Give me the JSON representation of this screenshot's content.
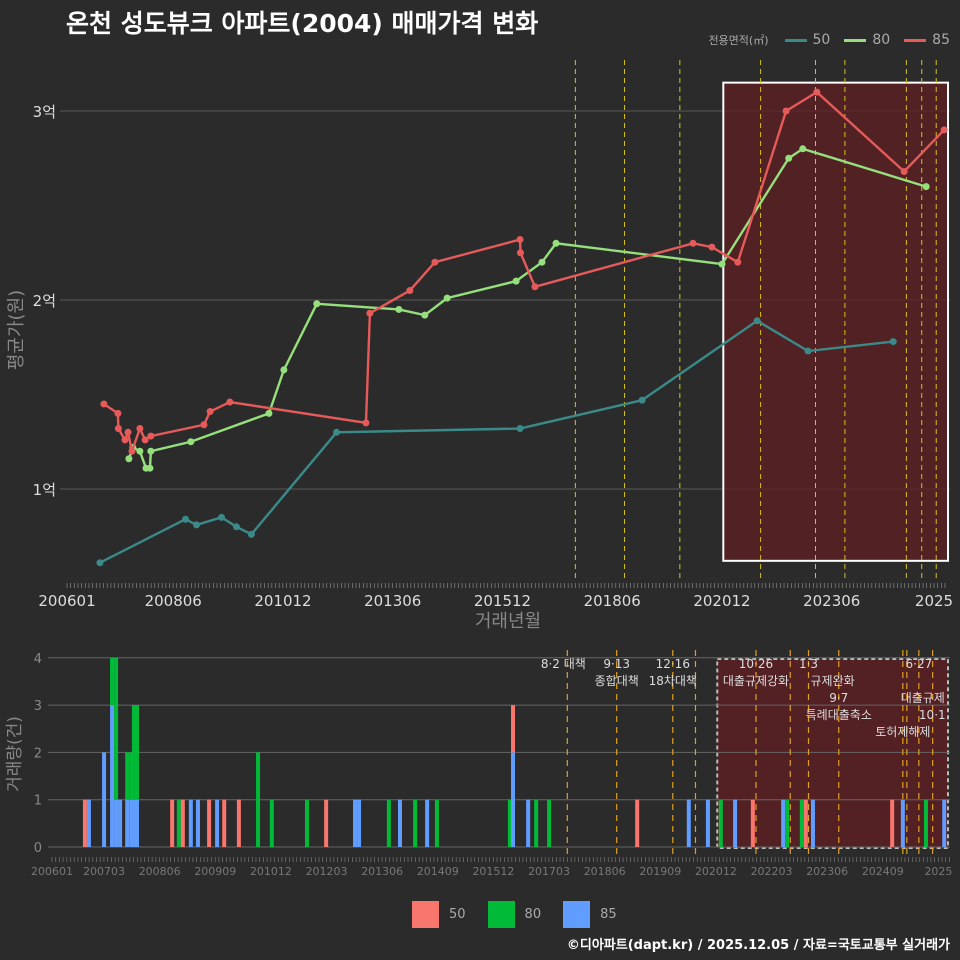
{
  "title": "온천 성도뷰크 아파트(2004) 매매가격 변화",
  "footer": "©디아파트(dapt.kr) / 2025.12.05 / 자료=국토교통부 실거래가",
  "legend_top": {
    "title": "전용면적(㎡)",
    "items": [
      {
        "label": "50",
        "color": "#3b8a8a"
      },
      {
        "label": "80",
        "color": "#95e07c"
      },
      {
        "label": "85",
        "color": "#e65a5a"
      }
    ]
  },
  "legend_bottom": {
    "items": [
      {
        "label": "50",
        "color": "#f8766d"
      },
      {
        "label": "80",
        "color": "#00ba38"
      },
      {
        "label": "85",
        "color": "#619cff"
      }
    ]
  },
  "chart_data": [
    {
      "type": "line",
      "title": "온천 성도뷰크 아파트(2004) 매매가격 변화",
      "xlabel": "거래년월",
      "ylabel": "평균가(원)",
      "xlim": [
        2006.0,
        2026.0
      ],
      "ylim": [
        0.55,
        3.2
      ],
      "x_ticks": [
        {
          "v": 2006.0,
          "l": "200601"
        },
        {
          "v": 2008.42,
          "l": "200806"
        },
        {
          "v": 2010.92,
          "l": "201012"
        },
        {
          "v": 2013.42,
          "l": "201306"
        },
        {
          "v": 2015.92,
          "l": "201512"
        },
        {
          "v": 2018.42,
          "l": "201806"
        },
        {
          "v": 2020.92,
          "l": "202012"
        },
        {
          "v": 2023.42,
          "l": "202306"
        },
        {
          "v": 2025.75,
          "l": "2025"
        }
      ],
      "y_ticks": [
        {
          "v": 1,
          "l": "1억"
        },
        {
          "v": 2,
          "l": "2억"
        },
        {
          "v": 3,
          "l": "3억"
        }
      ],
      "highlight": {
        "x": [
          2020.95,
          2026.0
        ],
        "y": [
          0.62,
          3.15
        ]
      },
      "event_lines": [
        2017.58,
        2018.7,
        2019.96,
        2021.8,
        2023.05,
        2023.72,
        2025.12,
        2025.47,
        2025.8
      ],
      "series": [
        {
          "name": "50",
          "color": "#3b8a8a",
          "points": [
            [
              2006.75,
              0.61
            ],
            [
              2008.7,
              0.84
            ],
            [
              2008.95,
              0.81
            ],
            [
              2009.52,
              0.85
            ],
            [
              2009.86,
              0.8
            ],
            [
              2010.2,
              0.76
            ],
            [
              2012.14,
              1.3
            ],
            [
              2016.32,
              1.32
            ],
            [
              2019.1,
              1.47
            ],
            [
              2021.72,
              1.89
            ],
            [
              2022.88,
              1.73
            ],
            [
              2024.82,
              1.78
            ]
          ]
        },
        {
          "name": "80",
          "color": "#95e07c",
          "points": [
            [
              2007.41,
              1.16
            ],
            [
              2007.5,
              1.22
            ],
            [
              2007.66,
              1.2
            ],
            [
              2007.8,
              1.11
            ],
            [
              2007.89,
              1.11
            ],
            [
              2007.91,
              1.2
            ],
            [
              2008.82,
              1.25
            ],
            [
              2010.6,
              1.4
            ],
            [
              2010.94,
              1.63
            ],
            [
              2011.69,
              1.98
            ],
            [
              2013.56,
              1.95
            ],
            [
              2014.15,
              1.92
            ],
            [
              2014.66,
              2.01
            ],
            [
              2016.23,
              2.1
            ],
            [
              2016.82,
              2.2
            ],
            [
              2017.14,
              2.3
            ],
            [
              2020.92,
              2.19
            ],
            [
              2022.44,
              2.75
            ],
            [
              2022.76,
              2.8
            ],
            [
              2025.57,
              2.6
            ]
          ]
        },
        {
          "name": "85",
          "color": "#e65a5a",
          "points": [
            [
              2006.84,
              1.45
            ],
            [
              2007.16,
              1.4
            ],
            [
              2007.17,
              1.32
            ],
            [
              2007.32,
              1.26
            ],
            [
              2007.39,
              1.3
            ],
            [
              2007.48,
              1.2
            ],
            [
              2007.66,
              1.32
            ],
            [
              2007.78,
              1.26
            ],
            [
              2007.91,
              1.28
            ],
            [
              2009.12,
              1.34
            ],
            [
              2009.26,
              1.41
            ],
            [
              2009.71,
              1.46
            ],
            [
              2012.81,
              1.35
            ],
            [
              2012.9,
              1.93
            ],
            [
              2013.81,
              2.05
            ],
            [
              2014.38,
              2.2
            ],
            [
              2016.32,
              2.32
            ],
            [
              2016.33,
              2.25
            ],
            [
              2016.66,
              2.07
            ],
            [
              2020.26,
              2.3
            ],
            [
              2020.69,
              2.28
            ],
            [
              2021.28,
              2.2
            ],
            [
              2022.38,
              3.0
            ],
            [
              2023.08,
              3.1
            ],
            [
              2025.07,
              2.68
            ],
            [
              2025.98,
              2.9
            ]
          ]
        }
      ]
    },
    {
      "type": "bar",
      "ylabel": "거래량(건)",
      "xlim": [
        2006.0,
        2026.15
      ],
      "ylim": [
        0,
        4
      ],
      "x_ticks": [
        {
          "v": 2006.0,
          "l": "200601"
        },
        {
          "v": 2007.17,
          "l": "200703"
        },
        {
          "v": 2008.42,
          "l": "200806"
        },
        {
          "v": 2009.67,
          "l": "200909"
        },
        {
          "v": 2010.92,
          "l": "201012"
        },
        {
          "v": 2012.17,
          "l": "201203"
        },
        {
          "v": 2013.42,
          "l": "201306"
        },
        {
          "v": 2014.67,
          "l": "201409"
        },
        {
          "v": 2015.92,
          "l": "201512"
        },
        {
          "v": 2017.17,
          "l": "201703"
        },
        {
          "v": 2018.42,
          "l": "201806"
        },
        {
          "v": 2019.67,
          "l": "201909"
        },
        {
          "v": 2020.92,
          "l": "202012"
        },
        {
          "v": 2022.17,
          "l": "202203"
        },
        {
          "v": 2023.42,
          "l": "202306"
        },
        {
          "v": 2024.67,
          "l": "202409"
        },
        {
          "v": 2025.92,
          "l": "2025"
        }
      ],
      "y_ticks": [
        0,
        1,
        2,
        3,
        4
      ],
      "highlight": {
        "x": [
          2020.95,
          2026.15
        ]
      },
      "series_order": [
        "85",
        "80",
        "50"
      ],
      "bars": [
        {
          "x": 2006.74,
          "c": {
            "50": 1
          }
        },
        {
          "x": 2006.83,
          "c": {
            "85": 1
          }
        },
        {
          "x": 2007.17,
          "c": {
            "85": 2
          }
        },
        {
          "x": 2007.35,
          "c": {
            "85": 3,
            "80": 1
          }
        },
        {
          "x": 2007.44,
          "c": {
            "85": 1,
            "80": 3
          }
        },
        {
          "x": 2007.53,
          "c": {
            "85": 1
          }
        },
        {
          "x": 2007.69,
          "c": {
            "85": 1,
            "80": 1
          }
        },
        {
          "x": 2007.78,
          "c": {
            "85": 1,
            "80": 1
          }
        },
        {
          "x": 2007.84,
          "c": {
            "85": 1,
            "80": 2
          }
        },
        {
          "x": 2007.91,
          "c": {
            "85": 1,
            "80": 2
          }
        },
        {
          "x": 2008.7,
          "c": {
            "50": 1
          }
        },
        {
          "x": 2008.85,
          "c": {
            "80": 1
          }
        },
        {
          "x": 2008.94,
          "c": {
            "50": 1
          }
        },
        {
          "x": 2009.12,
          "c": {
            "85": 1
          }
        },
        {
          "x": 2009.28,
          "c": {
            "85": 1
          }
        },
        {
          "x": 2009.53,
          "c": {
            "50": 1
          }
        },
        {
          "x": 2009.71,
          "c": {
            "85": 1
          }
        },
        {
          "x": 2009.87,
          "c": {
            "50": 1
          }
        },
        {
          "x": 2010.2,
          "c": {
            "50": 1
          }
        },
        {
          "x": 2010.63,
          "c": {
            "80": 2
          }
        },
        {
          "x": 2010.94,
          "c": {
            "80": 1
          }
        },
        {
          "x": 2011.73,
          "c": {
            "80": 1
          }
        },
        {
          "x": 2012.16,
          "c": {
            "50": 1
          }
        },
        {
          "x": 2012.81,
          "c": {
            "85": 1
          }
        },
        {
          "x": 2012.9,
          "c": {
            "85": 1
          }
        },
        {
          "x": 2013.57,
          "c": {
            "80": 1
          }
        },
        {
          "x": 2013.82,
          "c": {
            "85": 1
          }
        },
        {
          "x": 2014.16,
          "c": {
            "80": 1
          }
        },
        {
          "x": 2014.43,
          "c": {
            "85": 1
          }
        },
        {
          "x": 2014.65,
          "c": {
            "80": 1
          }
        },
        {
          "x": 2016.29,
          "c": {
            "80": 1
          }
        },
        {
          "x": 2016.36,
          "c": {
            "85": 2,
            "50": 1
          }
        },
        {
          "x": 2016.7,
          "c": {
            "85": 1
          }
        },
        {
          "x": 2016.88,
          "c": {
            "80": 1
          }
        },
        {
          "x": 2017.17,
          "c": {
            "80": 1
          }
        },
        {
          "x": 2019.15,
          "c": {
            "50": 1
          }
        },
        {
          "x": 2020.31,
          "c": {
            "85": 1
          }
        },
        {
          "x": 2020.74,
          "c": {
            "85": 1
          }
        },
        {
          "x": 2021.03,
          "c": {
            "80": 1
          }
        },
        {
          "x": 2021.35,
          "c": {
            "85": 1
          }
        },
        {
          "x": 2021.75,
          "c": {
            "50": 1
          }
        },
        {
          "x": 2022.43,
          "c": {
            "85": 1
          }
        },
        {
          "x": 2022.52,
          "c": {
            "80": 1
          }
        },
        {
          "x": 2022.85,
          "c": {
            "80": 1
          }
        },
        {
          "x": 2022.94,
          "c": {
            "50": 1
          }
        },
        {
          "x": 2023.1,
          "c": {
            "85": 1
          }
        },
        {
          "x": 2024.88,
          "c": {
            "50": 1
          }
        },
        {
          "x": 2025.12,
          "c": {
            "85": 1
          }
        },
        {
          "x": 2025.64,
          "c": {
            "80": 1
          }
        },
        {
          "x": 2026.05,
          "c": {
            "85": 1
          }
        }
      ],
      "events": [
        {
          "x": 2017.58,
          "date": "8·2 대책",
          "name": "",
          "row": 1
        },
        {
          "x": 2018.69,
          "date": "9·13",
          "name": "종합대책",
          "row": 0
        },
        {
          "x": 2019.95,
          "date": "12·16",
          "name": "18차대책",
          "row": 0
        },
        {
          "x": 2020.46,
          "date": "",
          "name": "",
          "row": 0
        },
        {
          "x": 2021.82,
          "date": "10·26",
          "name": "대출규제강화",
          "row": 0
        },
        {
          "x": 2022.59,
          "date": "",
          "name": "",
          "row": 0
        },
        {
          "x": 2023.0,
          "date": "1·3",
          "name": "규제완화",
          "row": 0
        },
        {
          "x": 2023.68,
          "date": "9·7",
          "name": "특례대출축소",
          "row": 2
        },
        {
          "x": 2025.12,
          "date": "",
          "name": "토허제해제",
          "row": 3
        },
        {
          "x": 2025.21,
          "date": "",
          "name": "",
          "row": 0
        },
        {
          "x": 2025.48,
          "date": "6·27",
          "name": "대출규제",
          "row": 0
        },
        {
          "x": 2025.79,
          "date": "10·1",
          "name": "",
          "row": 0
        }
      ]
    }
  ]
}
